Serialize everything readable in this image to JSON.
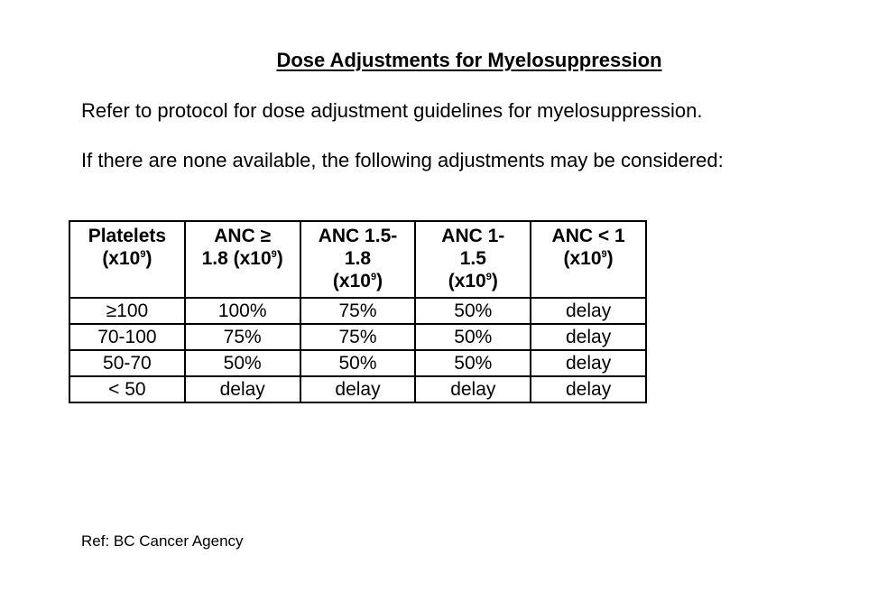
{
  "title": "Dose Adjustments for Myelosuppression",
  "paragraphs": {
    "p1": "Refer to protocol for dose adjustment guidelines for myelosuppression.",
    "p2": "If there are none available, the following adjustments may be considered:"
  },
  "table": {
    "headers": [
      {
        "lines": [
          "Platelets",
          "(x10",
          "9",
          ")"
        ]
      },
      {
        "lines": [
          "ANC ≥",
          "1.8 (x10",
          "9",
          ")"
        ]
      },
      {
        "lines": [
          "ANC 1.5-",
          "1.8",
          "(x10",
          "9",
          ")"
        ]
      },
      {
        "lines": [
          "ANC 1-",
          "1.5",
          "(x10",
          "9",
          ")"
        ]
      },
      {
        "lines": [
          "ANC < 1",
          "(x10",
          "9",
          ")"
        ]
      }
    ],
    "rows": [
      [
        "≥100",
        "100%",
        "75%",
        "50%",
        "delay"
      ],
      [
        "70-100",
        "75%",
        "75%",
        "50%",
        "delay"
      ],
      [
        "50-70",
        "50%",
        "50%",
        "50%",
        "delay"
      ],
      [
        "< 50",
        "delay",
        "delay",
        "delay",
        "delay"
      ]
    ]
  },
  "reference": "Ref: BC Cancer Agency"
}
